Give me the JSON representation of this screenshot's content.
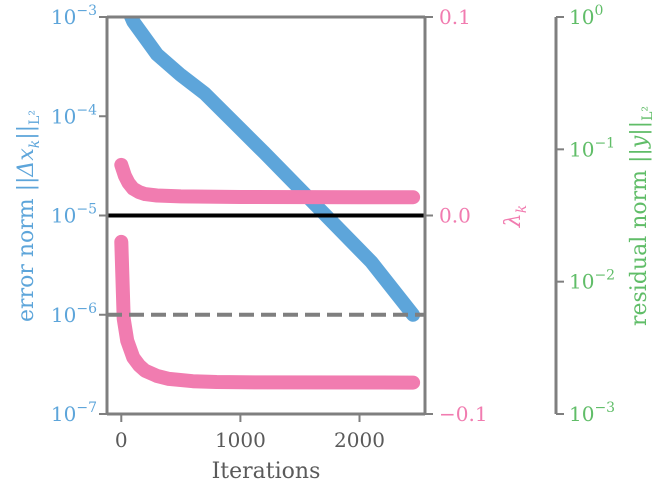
{
  "colors": {
    "error": "#5DA5DA",
    "lambda": "#F17CB0",
    "residual": "#60BD68",
    "axis": "#7F7F7F",
    "zero_line": "#000000",
    "tolerance_line": "#7F7F7F"
  },
  "chart_data": {
    "type": "line",
    "x_axis": {
      "label": "Iterations",
      "range": [
        -120,
        2550
      ],
      "ticks": [
        0,
        1000,
        2000
      ],
      "tick_labels": [
        "0",
        "1000",
        "2000"
      ]
    },
    "y_axes": {
      "error": {
        "label": "error norm ||Δx_k||_{L²}",
        "label_main": "error norm ",
        "label_math": "||Δx",
        "label_sub": "k",
        "label_tail": "||",
        "label_sub2": "L²",
        "scale": "log",
        "range": [
          1e-07,
          0.001
        ],
        "ticks": [
          {
            "value": 1e-07,
            "base": "10",
            "exp": "−7"
          },
          {
            "value": 1e-06,
            "base": "10",
            "exp": "−6"
          },
          {
            "value": 1e-05,
            "base": "10",
            "exp": "−5"
          },
          {
            "value": 0.0001,
            "base": "10",
            "exp": "−4"
          },
          {
            "value": 0.001,
            "base": "10",
            "exp": "−3"
          }
        ]
      },
      "lambda": {
        "label": "λ_k",
        "label_main": "λ",
        "label_sub": "k",
        "scale": "linear",
        "range": [
          -0.1,
          0.1
        ],
        "ticks": [
          {
            "value": -0.1,
            "label": "−0.1"
          },
          {
            "value": 0.0,
            "label": "0.0"
          },
          {
            "value": 0.1,
            "label": "0.1"
          }
        ]
      },
      "residual": {
        "label": "residual norm ||y||_{L²}",
        "label_main": "residual norm ",
        "label_math": "||y||",
        "label_sub": "L²",
        "scale": "log",
        "range": [
          0.001,
          1
        ],
        "ticks": [
          {
            "value": 0.001,
            "base": "10",
            "exp": "−3"
          },
          {
            "value": 0.01,
            "base": "10",
            "exp": "−2"
          },
          {
            "value": 0.1,
            "base": "10",
            "exp": "−1"
          },
          {
            "value": 1,
            "base": "10",
            "exp": "0"
          }
        ]
      }
    },
    "series": [
      {
        "axis": "error",
        "points": [
          [
            20,
            0.0015
          ],
          [
            100,
            0.0009
          ],
          [
            300,
            0.00042
          ],
          [
            500,
            0.00026
          ],
          [
            700,
            0.00017
          ],
          [
            1200,
            4.3e-05
          ],
          [
            1700,
            1.05e-05
          ],
          [
            2100,
            3.4e-06
          ],
          [
            2450,
            1e-06
          ]
        ]
      },
      {
        "axis": "lambda",
        "points": [
          [
            0,
            0.0255
          ],
          [
            30,
            0.02
          ],
          [
            60,
            0.0165
          ],
          [
            100,
            0.0135
          ],
          [
            150,
            0.0118
          ],
          [
            200,
            0.0108
          ],
          [
            300,
            0.0101
          ],
          [
            500,
            0.0096
          ],
          [
            1000,
            0.0093
          ],
          [
            2000,
            0.0092
          ],
          [
            2450,
            0.0092
          ]
        ]
      },
      {
        "axis": "lambda",
        "points": [
          [
            0,
            -0.0133
          ],
          [
            20,
            -0.052
          ],
          [
            50,
            -0.063
          ],
          [
            100,
            -0.0715
          ],
          [
            150,
            -0.0755
          ],
          [
            200,
            -0.0782
          ],
          [
            300,
            -0.0808
          ],
          [
            400,
            -0.0823
          ],
          [
            600,
            -0.0835
          ],
          [
            800,
            -0.0839
          ],
          [
            1200,
            -0.0841
          ],
          [
            2450,
            -0.0842
          ]
        ]
      }
    ],
    "reference_lines": [
      {
        "axis": "lambda",
        "value": 0.0,
        "style": "solid"
      },
      {
        "axis": "error",
        "value": 1e-06,
        "style": "dashed"
      }
    ],
    "grid": false,
    "legend": "none"
  }
}
